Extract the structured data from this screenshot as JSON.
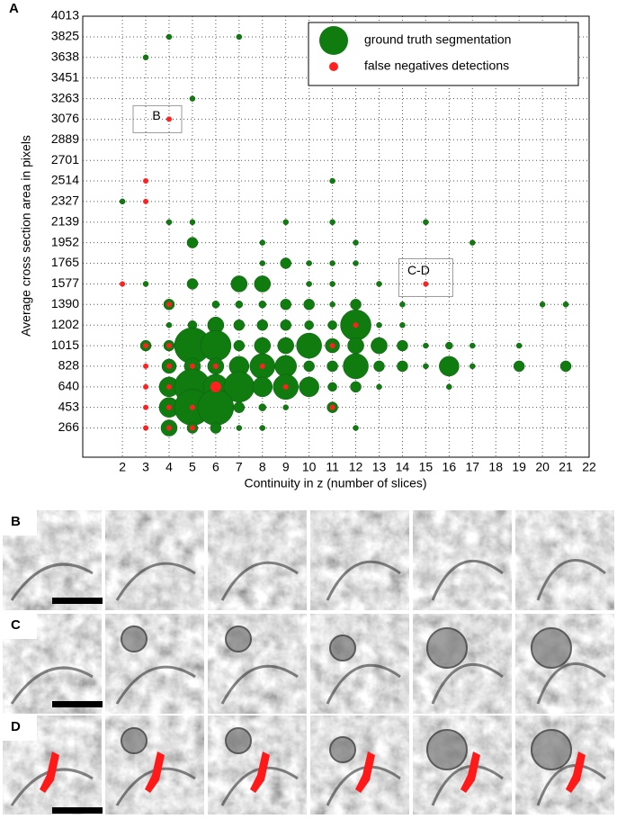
{
  "figure_labels": [
    "A",
    "B",
    "C",
    "D"
  ],
  "chart_data": {
    "type": "bubble",
    "x_label": "Continuity in z (number of slices)",
    "y_label": "Average cross section area in pixels",
    "xlim": [
      0.3,
      22
    ],
    "xticks": [
      2,
      3,
      4,
      5,
      6,
      7,
      8,
      9,
      10,
      11,
      12,
      13,
      14,
      15,
      16,
      17,
      18,
      19,
      20,
      21,
      22
    ],
    "ylim": [
      0,
      4013
    ],
    "yticks": [
      266,
      453,
      640,
      828,
      1015,
      1202,
      1390,
      1577,
      1765,
      1952,
      2139,
      2327,
      2514,
      2701,
      2889,
      3076,
      3263,
      3451,
      3638,
      3825,
      4013
    ],
    "grid": true,
    "legend": "upper right",
    "annotations": [
      "B",
      "C-D"
    ],
    "series": [
      {
        "name": "ground truth segmentation",
        "color": "#107c10",
        "x": [
          4,
          7,
          3,
          5,
          11,
          2,
          4,
          5,
          9,
          11,
          15,
          5,
          8,
          12,
          17,
          8,
          9,
          10,
          11,
          12,
          3,
          5,
          7,
          8,
          10,
          11,
          13,
          4,
          6,
          7,
          8,
          9,
          10,
          11,
          12,
          14,
          20,
          21,
          4,
          5,
          6,
          7,
          8,
          9,
          10,
          11,
          12,
          13,
          14,
          3,
          4,
          5,
          6,
          7,
          8,
          9,
          10,
          11,
          12,
          13,
          14,
          15,
          16,
          17,
          19,
          4,
          5,
          6,
          7,
          8,
          9,
          10,
          11,
          12,
          13,
          14,
          15,
          16,
          17,
          19,
          21,
          4,
          5,
          6,
          7,
          8,
          9,
          10,
          11,
          12,
          13,
          16,
          4,
          5,
          6,
          7,
          8,
          9,
          11,
          4,
          5,
          6,
          7,
          8,
          12
        ],
        "y": [
          3825,
          3825,
          3638,
          3263,
          2514,
          2327,
          2139,
          2139,
          2139,
          2139,
          2139,
          1952,
          1952,
          1952,
          1952,
          1765,
          1765,
          1765,
          1765,
          1765,
          1577,
          1577,
          1577,
          1577,
          1577,
          1577,
          1577,
          1390,
          1390,
          1390,
          1390,
          1390,
          1390,
          1390,
          1390,
          1390,
          1390,
          1390,
          1202,
          1202,
          1202,
          1202,
          1202,
          1202,
          1202,
          1202,
          1202,
          1202,
          1202,
          1015,
          1015,
          1015,
          1015,
          1015,
          1015,
          1015,
          1015,
          1015,
          1015,
          1015,
          1015,
          1015,
          1015,
          1015,
          1015,
          828,
          828,
          828,
          828,
          828,
          828,
          828,
          828,
          828,
          828,
          828,
          828,
          828,
          828,
          828,
          828,
          640,
          640,
          640,
          640,
          640,
          640,
          640,
          640,
          640,
          640,
          640,
          453,
          453,
          453,
          453,
          453,
          453,
          453,
          266,
          266,
          266,
          266,
          266,
          266
        ],
        "sizes": [
          3,
          3,
          3,
          3,
          3,
          3,
          3,
          3,
          3,
          3,
          3,
          6,
          3,
          3,
          3,
          3,
          6,
          3,
          3,
          3,
          3,
          6,
          9,
          9,
          3,
          3,
          3,
          6,
          4,
          4,
          4,
          6,
          6,
          3,
          6,
          3,
          3,
          3,
          3,
          5,
          9,
          6,
          6,
          6,
          5,
          5,
          17,
          3,
          3,
          6,
          6,
          20,
          17,
          6,
          9,
          9,
          14,
          8,
          9,
          9,
          6,
          3,
          4,
          3,
          3,
          8,
          9,
          9,
          11,
          14,
          12,
          6,
          6,
          14,
          6,
          6,
          3,
          11,
          3,
          6,
          6,
          11,
          20,
          14,
          17,
          11,
          14,
          11,
          5,
          6,
          3,
          3,
          11,
          20,
          20,
          6,
          4,
          3,
          6,
          9,
          6,
          6,
          3,
          3,
          3
        ]
      },
      {
        "name": "false negatives detections",
        "color": "#ff2020",
        "x": [
          4,
          3,
          3,
          2,
          15,
          4,
          12,
          3,
          4,
          11,
          3,
          4,
          5,
          6,
          8,
          3,
          4,
          6,
          9,
          3,
          4,
          5,
          11,
          3,
          4,
          5
        ],
        "y": [
          3076,
          2514,
          2327,
          1577,
          1577,
          1390,
          1202,
          1015,
          1015,
          1015,
          828,
          828,
          828,
          828,
          828,
          640,
          640,
          640,
          640,
          453,
          453,
          453,
          453,
          266,
          266,
          266
        ],
        "sizes": [
          3,
          3,
          3,
          3,
          3,
          3,
          3,
          3,
          3,
          3,
          3,
          3,
          3,
          3,
          3,
          3,
          3,
          6,
          3,
          3,
          3,
          3,
          3,
          3,
          3,
          3
        ]
      }
    ]
  }
}
